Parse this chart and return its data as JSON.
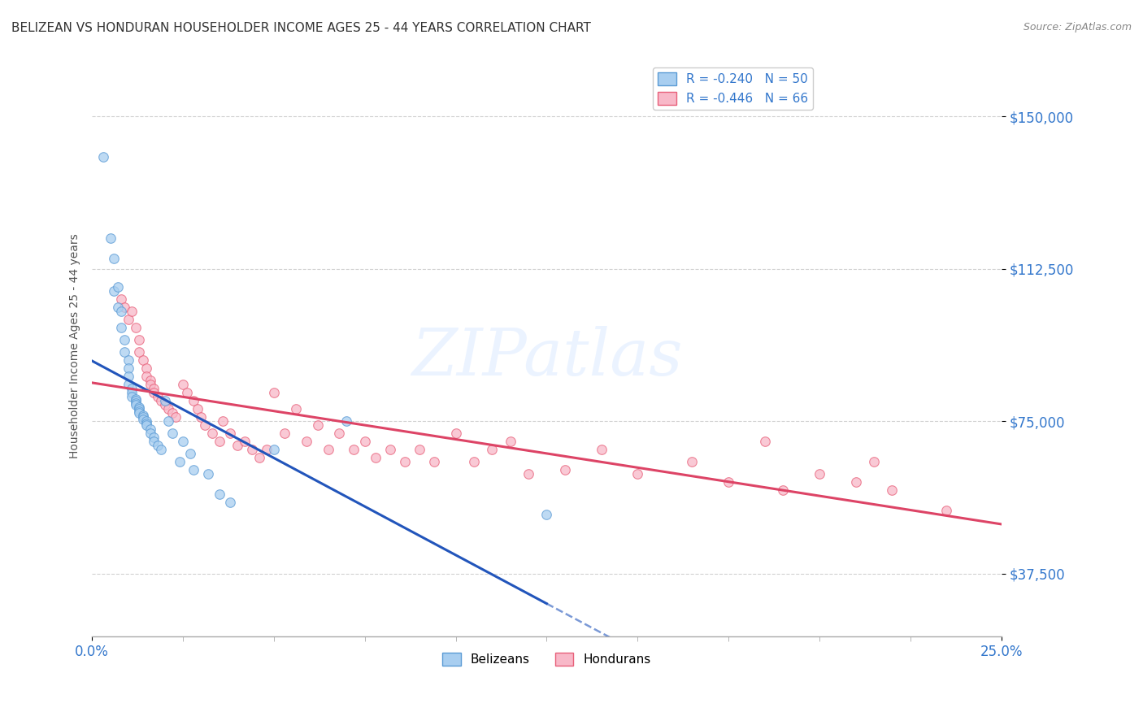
{
  "title": "BELIZEAN VS HONDURAN HOUSEHOLDER INCOME AGES 25 - 44 YEARS CORRELATION CHART",
  "source": "Source: ZipAtlas.com",
  "ylabel": "Householder Income Ages 25 - 44 years",
  "ytick_values": [
    37500,
    75000,
    112500,
    150000
  ],
  "xmin": 0.0,
  "xmax": 0.25,
  "ymin": 22000,
  "ymax": 165000,
  "legend_blue_label": "R = -0.240   N = 50",
  "legend_pink_label": "R = -0.446   N = 66",
  "blue_color": "#A8CEF0",
  "pink_color": "#F8B8C8",
  "blue_edge": "#5B9BD5",
  "pink_edge": "#E8607A",
  "blue_line_color": "#2255BB",
  "pink_line_color": "#DD4466",
  "belizeans_x": [
    0.003,
    0.005,
    0.006,
    0.006,
    0.007,
    0.007,
    0.008,
    0.008,
    0.009,
    0.009,
    0.01,
    0.01,
    0.01,
    0.01,
    0.011,
    0.011,
    0.011,
    0.012,
    0.012,
    0.012,
    0.012,
    0.013,
    0.013,
    0.013,
    0.013,
    0.014,
    0.014,
    0.014,
    0.015,
    0.015,
    0.015,
    0.016,
    0.016,
    0.017,
    0.017,
    0.018,
    0.019,
    0.02,
    0.021,
    0.022,
    0.024,
    0.025,
    0.027,
    0.028,
    0.032,
    0.035,
    0.038,
    0.05,
    0.07,
    0.125
  ],
  "belizeans_y": [
    140000,
    120000,
    115000,
    107000,
    108000,
    103000,
    102000,
    98000,
    95000,
    92000,
    90000,
    88000,
    86000,
    84000,
    83000,
    82000,
    81000,
    80500,
    80000,
    79500,
    79000,
    78500,
    78000,
    77500,
    77000,
    76500,
    76000,
    75500,
    75000,
    74500,
    74000,
    73000,
    72000,
    71000,
    70000,
    69000,
    68000,
    80000,
    75000,
    72000,
    65000,
    70000,
    67000,
    63000,
    62000,
    57000,
    55000,
    68000,
    75000,
    52000
  ],
  "hondurans_x": [
    0.008,
    0.009,
    0.01,
    0.011,
    0.012,
    0.013,
    0.013,
    0.014,
    0.015,
    0.015,
    0.016,
    0.016,
    0.017,
    0.017,
    0.018,
    0.019,
    0.02,
    0.021,
    0.022,
    0.023,
    0.025,
    0.026,
    0.028,
    0.029,
    0.03,
    0.031,
    0.033,
    0.035,
    0.036,
    0.038,
    0.04,
    0.042,
    0.044,
    0.046,
    0.048,
    0.05,
    0.053,
    0.056,
    0.059,
    0.062,
    0.065,
    0.068,
    0.072,
    0.075,
    0.078,
    0.082,
    0.086,
    0.09,
    0.094,
    0.1,
    0.105,
    0.11,
    0.115,
    0.12,
    0.13,
    0.14,
    0.15,
    0.165,
    0.175,
    0.185,
    0.19,
    0.2,
    0.21,
    0.215,
    0.22,
    0.235
  ],
  "hondurans_y": [
    105000,
    103000,
    100000,
    102000,
    98000,
    95000,
    92000,
    90000,
    88000,
    86000,
    85000,
    84000,
    83000,
    82000,
    81000,
    80000,
    79000,
    78000,
    77000,
    76000,
    84000,
    82000,
    80000,
    78000,
    76000,
    74000,
    72000,
    70000,
    75000,
    72000,
    69000,
    70000,
    68000,
    66000,
    68000,
    82000,
    72000,
    78000,
    70000,
    74000,
    68000,
    72000,
    68000,
    70000,
    66000,
    68000,
    65000,
    68000,
    65000,
    72000,
    65000,
    68000,
    70000,
    62000,
    63000,
    68000,
    62000,
    65000,
    60000,
    70000,
    58000,
    62000,
    60000,
    65000,
    58000,
    53000
  ],
  "marker_size": 70,
  "marker_alpha": 0.75,
  "grid_color": "#CCCCCC",
  "background_color": "#FFFFFF",
  "watermark_color": "#C8DEFF",
  "watermark_alpha": 0.35
}
